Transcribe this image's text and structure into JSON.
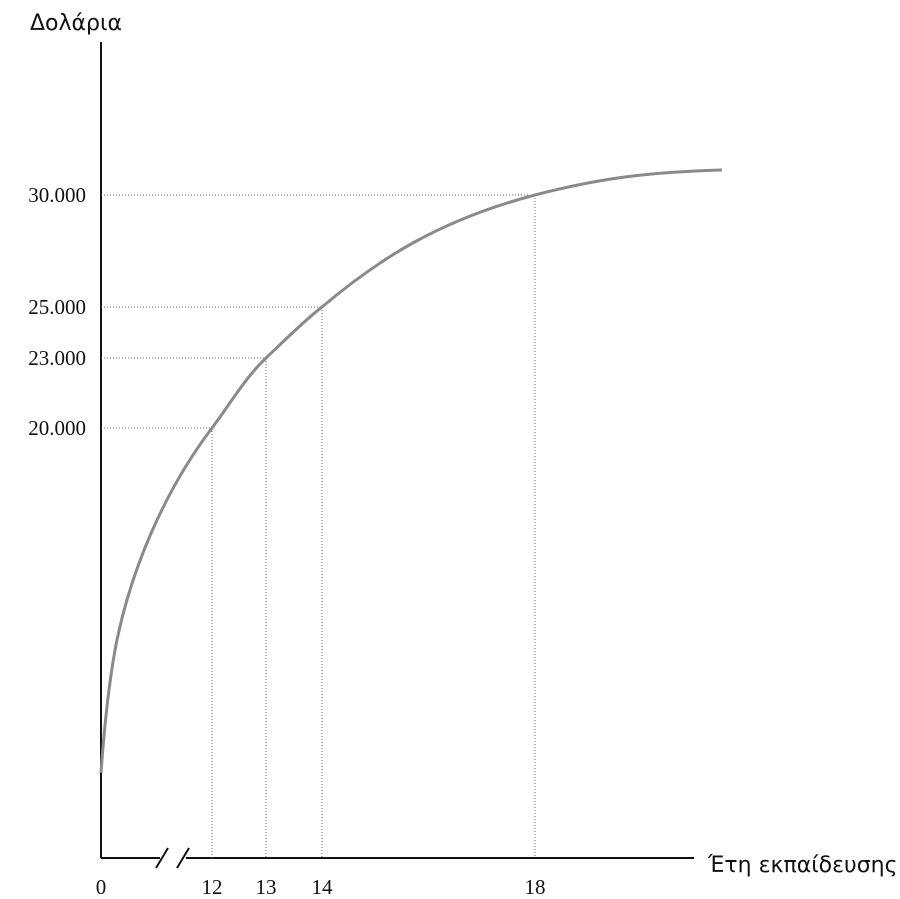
{
  "chart_data": {
    "type": "line",
    "ylabel": "Δολάρια",
    "xlabel": "Έτη εκπαίδευσης",
    "x_axis_break": true,
    "x_ticks": [
      "0",
      "12",
      "13",
      "14",
      "18"
    ],
    "y_ticks": [
      "30.000",
      "25.000",
      "23.000",
      "20.000"
    ],
    "grid": false,
    "series": [
      {
        "color": "#8a8a8a",
        "points": [
          {
            "x": 12,
            "y": 20000
          },
          {
            "x": 13,
            "y": 23000
          },
          {
            "x": 14,
            "y": 25000
          },
          {
            "x": 18,
            "y": 30000
          }
        ]
      }
    ],
    "reference_points": [
      {
        "x_label": "12",
        "y_label": "20.000"
      },
      {
        "x_label": "13",
        "y_label": "23.000"
      },
      {
        "x_label": "14",
        "y_label": "25.000"
      },
      {
        "x_label": "18",
        "y_label": "30.000"
      }
    ]
  }
}
